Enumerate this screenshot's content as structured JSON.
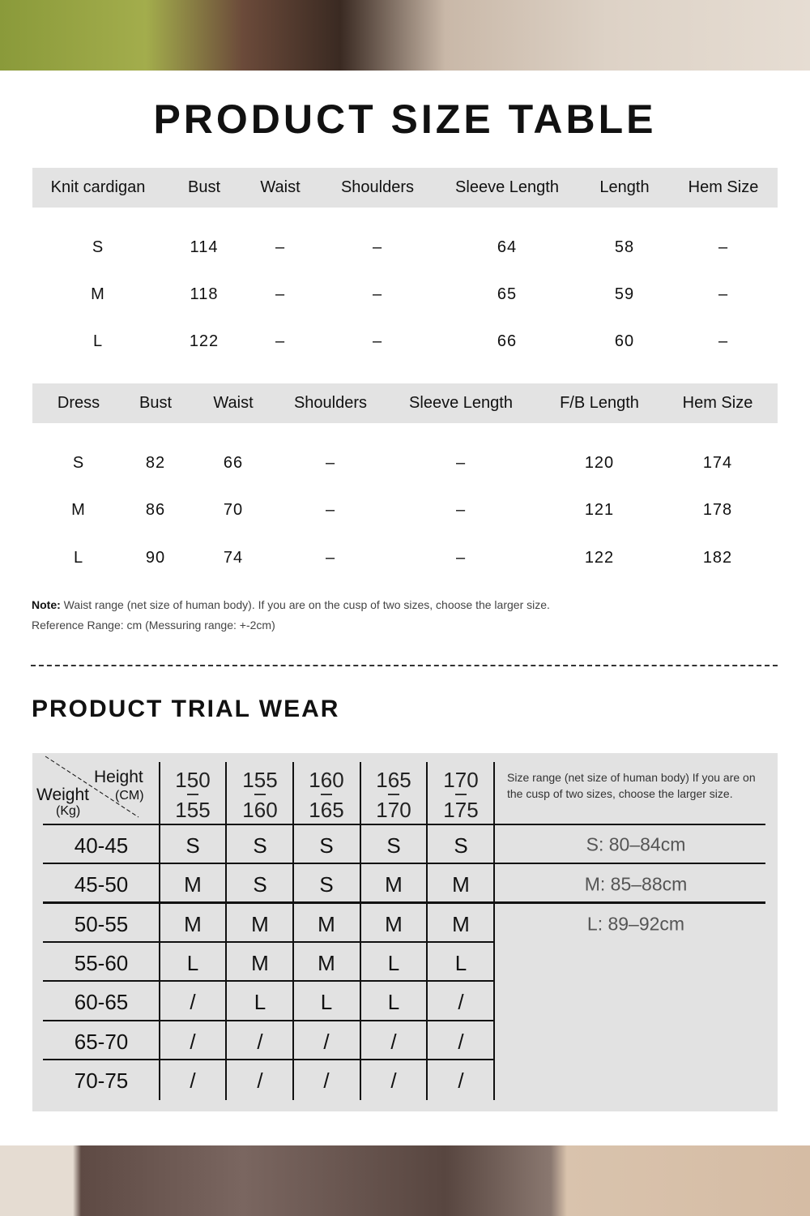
{
  "title": "PRODUCT SIZE TABLE",
  "cardigan": {
    "headers": [
      "Knit cardigan",
      "Bust",
      "Waist",
      "Shoulders",
      "Sleeve Length",
      "Length",
      "Hem Size"
    ],
    "rows": [
      [
        "S",
        "114",
        "–",
        "–",
        "64",
        "58",
        "–"
      ],
      [
        "M",
        "118",
        "–",
        "–",
        "65",
        "59",
        "–"
      ],
      [
        "L",
        "122",
        "–",
        "–",
        "66",
        "60",
        "–"
      ]
    ]
  },
  "dress": {
    "headers": [
      "Dress",
      "Bust",
      "Waist",
      "Shoulders",
      "Sleeve Length",
      "F/B  Length",
      "Hem Size"
    ],
    "rows": [
      [
        "S",
        "82",
        "66",
        "–",
        "–",
        "120",
        "174"
      ],
      [
        "M",
        "86",
        "70",
        "–",
        "–",
        "121",
        "178"
      ],
      [
        "L",
        "90",
        "74",
        "–",
        "–",
        "122",
        "182"
      ]
    ]
  },
  "note": {
    "label": "Note:",
    "text": " Waist range (net size of human body). If you are on the cusp of two sizes, choose the larger size.",
    "reference": "Reference Range: cm (Messuring range: +-2cm)"
  },
  "trial": {
    "title": "PRODUCT TRIAL WEAR",
    "corner": {
      "height": "Height",
      "cm": "(CM)",
      "weight": "Weight",
      "kg": "(Kg)"
    },
    "heights": [
      [
        "150",
        "155"
      ],
      [
        "155",
        "160"
      ],
      [
        "160",
        "165"
      ],
      [
        "165",
        "170"
      ],
      [
        "170",
        "175"
      ]
    ],
    "rows": [
      [
        "40-45",
        "S",
        "S",
        "S",
        "S",
        "S"
      ],
      [
        "45-50",
        "M",
        "S",
        "S",
        "M",
        "M"
      ],
      [
        "50-55",
        "M",
        "M",
        "M",
        "M",
        "M"
      ],
      [
        "55-60",
        "L",
        "M",
        "M",
        "L",
        "L"
      ],
      [
        "60-65",
        "/",
        "L",
        "L",
        "L",
        "/"
      ],
      [
        "65-70",
        "/",
        "/",
        "/",
        "/",
        "/"
      ],
      [
        "70-75",
        "/",
        "/",
        "/",
        "/",
        "/"
      ]
    ],
    "side_note": "Size range (net size of human body) If you are on the cusp of two sizes, choose the larger size.",
    "ranges": [
      "S: 80–84cm",
      "M: 85–88cm",
      "L: 89–92cm"
    ]
  }
}
